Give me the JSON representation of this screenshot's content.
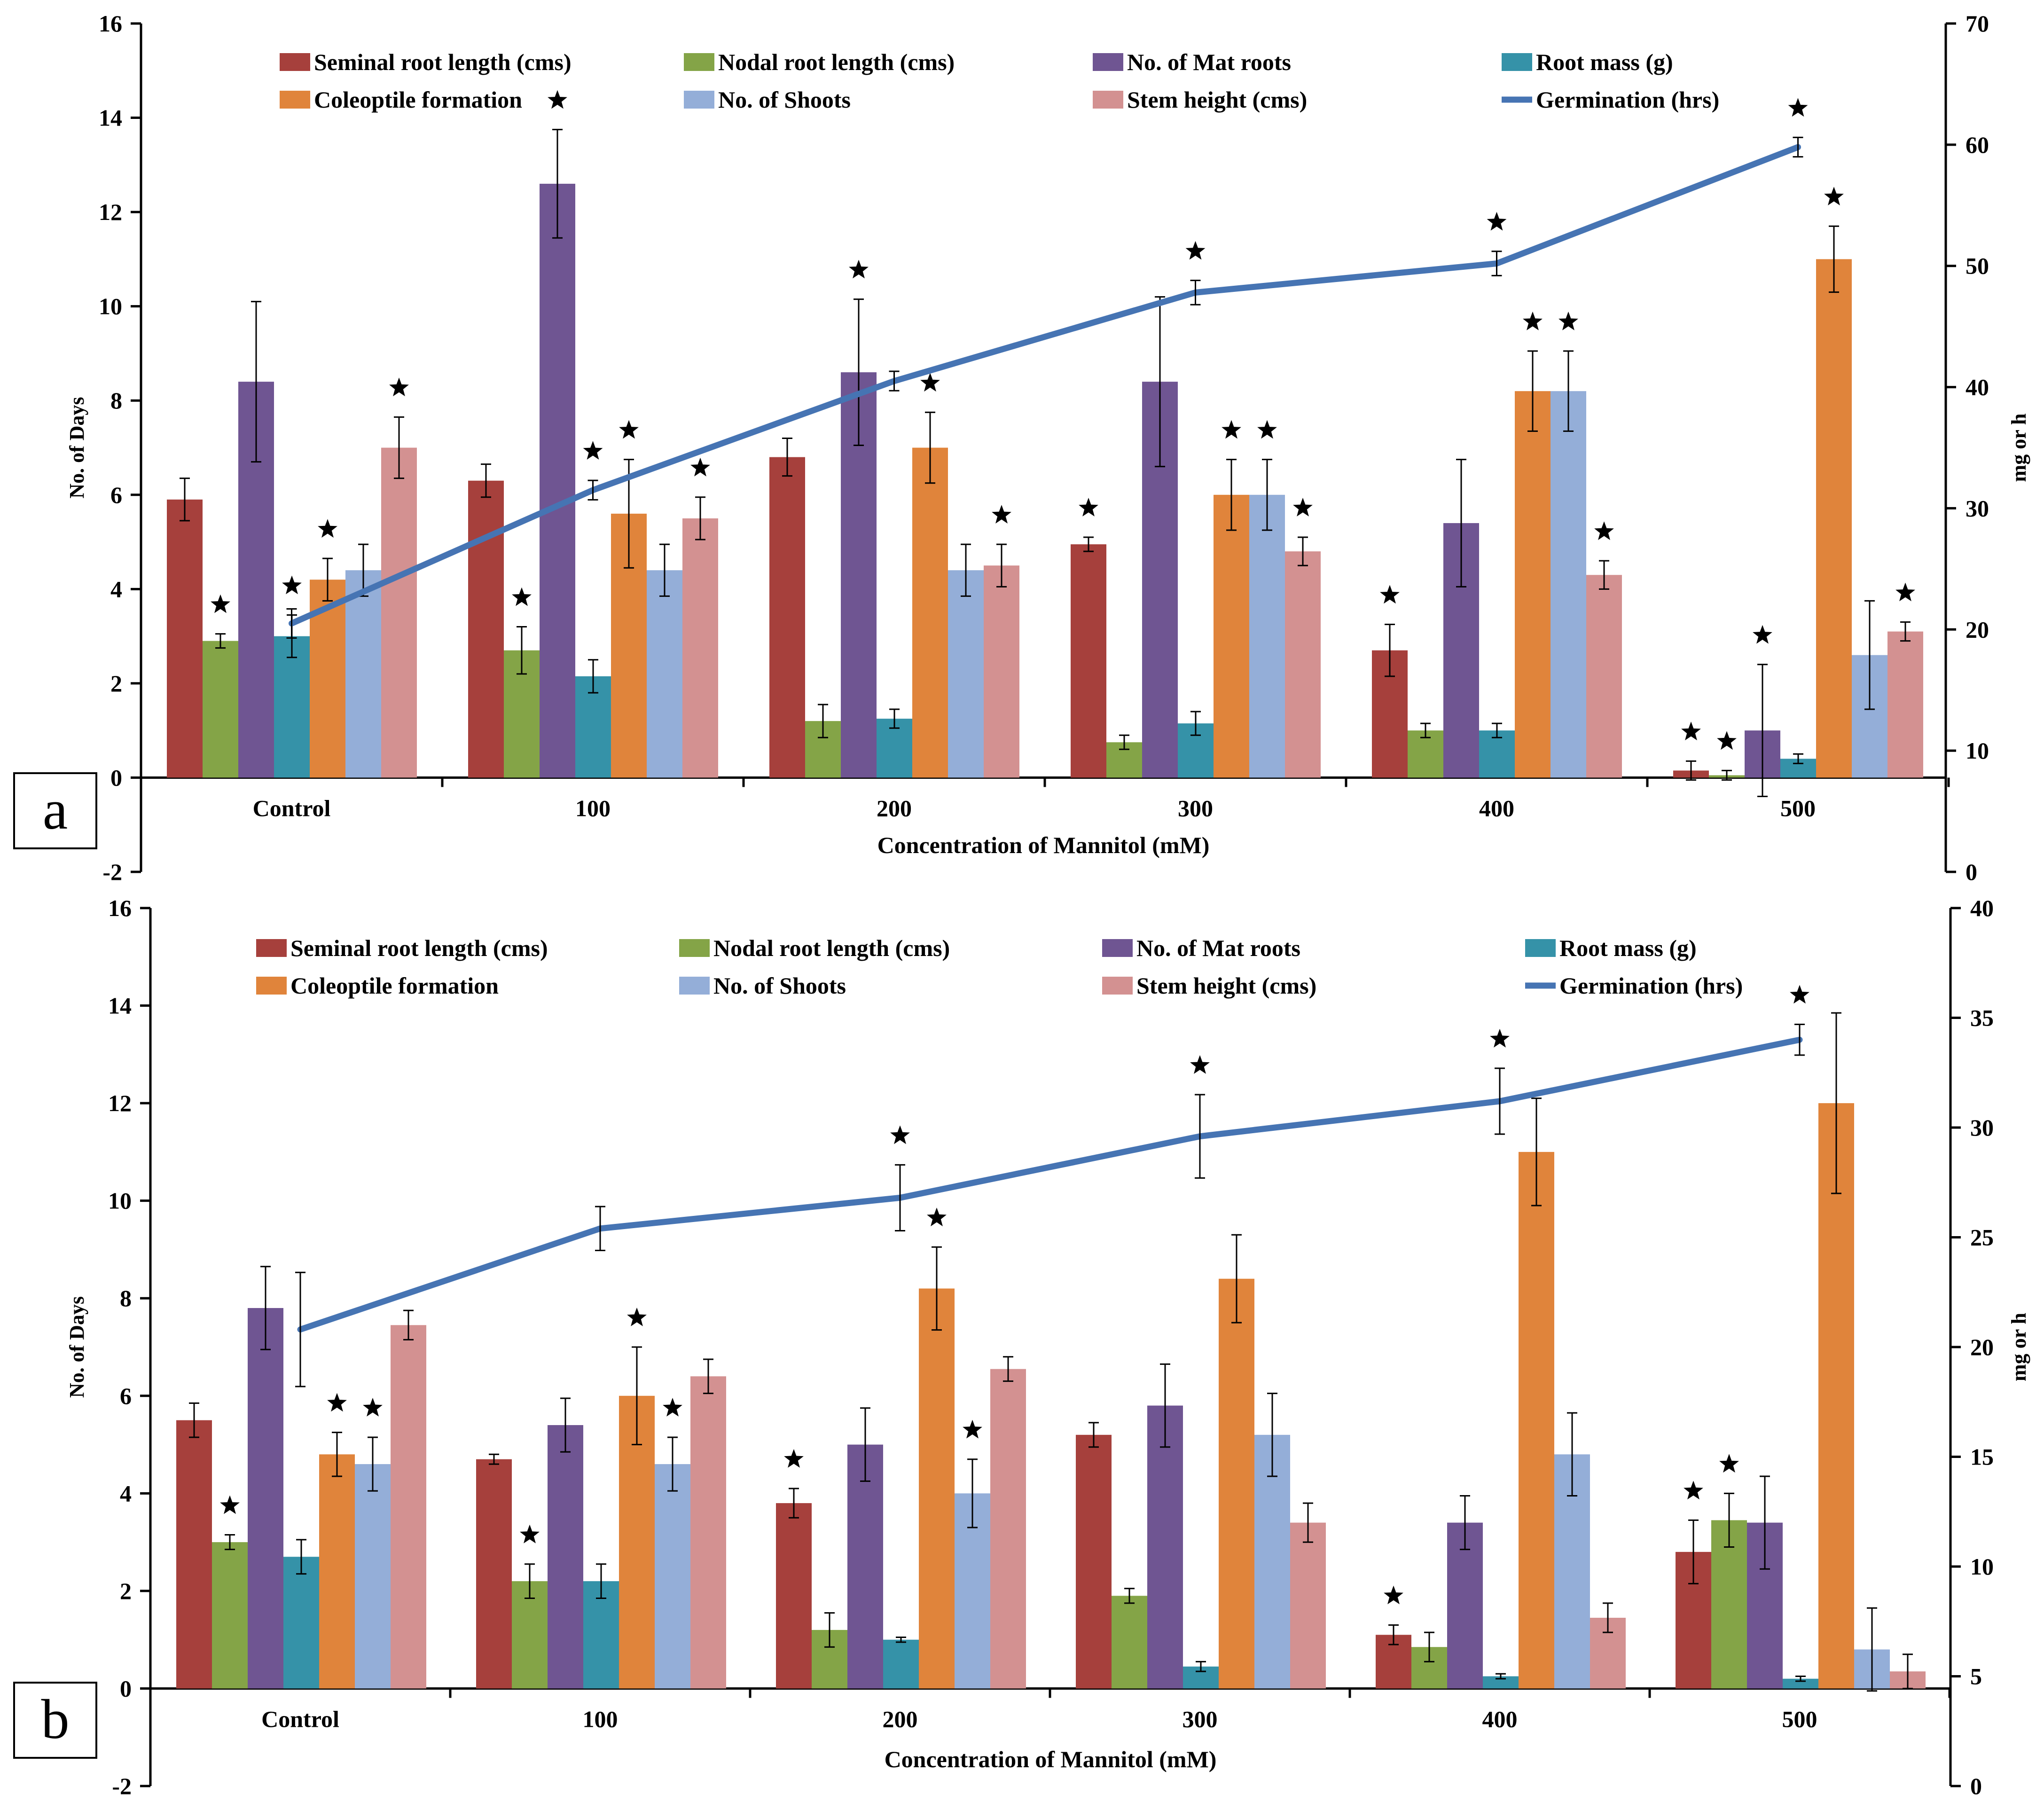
{
  "colors": {
    "seminal": "#A6403C",
    "nodal": "#84A447",
    "mat": "#6F5592",
    "mass": "#3592A8",
    "coleoptile": "#E0843B",
    "shoots": "#94AED8",
    "stem": "#D39191",
    "germ": "#4674B3",
    "axis": "#000000"
  },
  "chart_data": [
    {
      "panel_label": "a",
      "type": "bar",
      "xlabel": "Concentration  of Mannitol  (mM)",
      "ylabel": "No. of Days",
      "ylabel_right": "mg or h",
      "ylim": [
        -2,
        16
      ],
      "y_ticks": [
        "-2",
        "0",
        "2",
        "4",
        "6",
        "8",
        "10",
        "12",
        "14",
        "16"
      ],
      "ylim_right": [
        0,
        70
      ],
      "y_ticks_right": [
        "0",
        "10",
        "20",
        "30",
        "40",
        "50",
        "60",
        "70"
      ],
      "categories": [
        "Control",
        "100",
        "200",
        "300",
        "400",
        "500"
      ],
      "legend_row1": [
        "Seminal root length (cms)",
        "Nodal root length (cms)",
        "No. of Mat roots",
        "Root mass (g)"
      ],
      "legend_row2": [
        "Coleoptile formation",
        "No. of Shoots",
        "Stem height (cms)",
        "Germination (hrs)"
      ],
      "series": [
        {
          "name": "Seminal root length (cms)",
          "key": "seminal",
          "values": [
            5.9,
            6.3,
            6.8,
            4.95,
            2.7,
            0.15
          ],
          "errors": [
            0.45,
            0.35,
            0.4,
            0.15,
            0.55,
            0.2
          ],
          "stars": [
            false,
            false,
            false,
            true,
            true,
            true
          ]
        },
        {
          "name": "Nodal root length (cms)",
          "key": "nodal",
          "values": [
            2.9,
            2.7,
            1.2,
            0.75,
            1.0,
            0.05
          ],
          "errors": [
            0.15,
            0.5,
            0.35,
            0.15,
            0.15,
            0.1
          ],
          "stars": [
            true,
            true,
            false,
            false,
            false,
            true
          ]
        },
        {
          "name": "No. of Mat roots",
          "key": "mat",
          "values": [
            8.4,
            12.6,
            8.6,
            8.4,
            5.4,
            1.0
          ],
          "errors": [
            1.7,
            1.15,
            1.55,
            1.8,
            1.35,
            1.4
          ],
          "stars": [
            false,
            true,
            true,
            false,
            false,
            true
          ]
        },
        {
          "name": "Root mass (g)",
          "key": "mass",
          "values": [
            3.0,
            2.15,
            1.25,
            1.15,
            1.0,
            0.4
          ],
          "errors": [
            0.45,
            0.35,
            0.2,
            0.25,
            0.15,
            0.1
          ],
          "stars": [
            true,
            false,
            false,
            false,
            false,
            false
          ]
        },
        {
          "name": "Coleoptile formation",
          "key": "coleoptile",
          "values": [
            4.2,
            5.6,
            7.0,
            6.0,
            8.2,
            11.0
          ],
          "errors": [
            0.45,
            1.15,
            0.75,
            0.75,
            0.85,
            0.7
          ],
          "stars": [
            true,
            true,
            true,
            true,
            true,
            true
          ]
        },
        {
          "name": "No. of Shoots",
          "key": "shoots",
          "values": [
            4.4,
            4.4,
            4.4,
            6.0,
            8.2,
            2.6
          ],
          "errors": [
            0.55,
            0.55,
            0.55,
            0.75,
            0.85,
            1.15
          ],
          "stars": [
            false,
            false,
            false,
            true,
            true,
            false
          ]
        },
        {
          "name": "Stem height (cms)",
          "key": "stem",
          "values": [
            7.0,
            5.5,
            4.5,
            4.8,
            4.3,
            3.1
          ],
          "errors": [
            0.65,
            0.45,
            0.45,
            0.3,
            0.3,
            0.2
          ],
          "stars": [
            true,
            true,
            true,
            true,
            true,
            true
          ]
        }
      ],
      "line": {
        "name": "Germination (hrs)",
        "key": "germ",
        "values": [
          20.5,
          31.5,
          40.5,
          47.8,
          50.2,
          59.8
        ],
        "errors": [
          1.2,
          0.8,
          0.8,
          1.0,
          1.0,
          0.8
        ],
        "stars": [
          false,
          true,
          false,
          true,
          true,
          true
        ]
      }
    },
    {
      "panel_label": "b",
      "type": "bar",
      "xlabel": "Concentration  of Mannitol  (mM)",
      "ylabel": "No. of Days",
      "ylabel_right": "mg or h",
      "ylim": [
        -2,
        16
      ],
      "y_ticks": [
        "-2",
        "0",
        "2",
        "4",
        "6",
        "8",
        "10",
        "12",
        "14",
        "16"
      ],
      "ylim_right": [
        0,
        40
      ],
      "y_ticks_right": [
        "0",
        "5",
        "10",
        "15",
        "20",
        "25",
        "30",
        "35",
        "40"
      ],
      "categories": [
        "Control",
        "100",
        "200",
        "300",
        "400",
        "500"
      ],
      "legend_row1": [
        "Seminal root length (cms)",
        "Nodal root length (cms)",
        "No. of Mat roots",
        "Root mass (g)"
      ],
      "legend_row2": [
        "Coleoptile formation",
        "No. of Shoots",
        "Stem height (cms)",
        "Germination (hrs)"
      ],
      "series": [
        {
          "name": "Seminal root length (cms)",
          "key": "seminal",
          "values": [
            5.5,
            4.7,
            3.8,
            5.2,
            1.1,
            2.8
          ],
          "errors": [
            0.35,
            0.1,
            0.3,
            0.25,
            0.2,
            0.65
          ],
          "stars": [
            false,
            false,
            true,
            false,
            true,
            true
          ]
        },
        {
          "name": "Nodal root length (cms)",
          "key": "nodal",
          "values": [
            3.0,
            2.2,
            1.2,
            1.9,
            0.85,
            3.45
          ],
          "errors": [
            0.15,
            0.35,
            0.35,
            0.15,
            0.3,
            0.55
          ],
          "stars": [
            true,
            true,
            false,
            false,
            false,
            true
          ]
        },
        {
          "name": "No. of Mat roots",
          "key": "mat",
          "values": [
            7.8,
            5.4,
            5.0,
            5.8,
            3.4,
            3.4
          ],
          "errors": [
            0.85,
            0.55,
            0.75,
            0.85,
            0.55,
            0.95
          ],
          "stars": [
            false,
            false,
            false,
            false,
            false,
            false
          ]
        },
        {
          "name": "Root mass (g)",
          "key": "mass",
          "values": [
            2.7,
            2.2,
            1.0,
            0.45,
            0.25,
            0.2
          ],
          "errors": [
            0.35,
            0.35,
            0.05,
            0.1,
            0.05,
            0.05
          ],
          "stars": [
            false,
            false,
            false,
            false,
            false,
            false
          ]
        },
        {
          "name": "Coleoptile formation",
          "key": "coleoptile",
          "values": [
            4.8,
            6.0,
            8.2,
            8.4,
            11.0,
            12.0
          ],
          "errors": [
            0.45,
            1.0,
            0.85,
            0.9,
            1.1,
            1.85
          ],
          "stars": [
            true,
            true,
            true,
            false,
            false,
            false
          ]
        },
        {
          "name": "No. of Shoots",
          "key": "shoots",
          "values": [
            4.6,
            4.6,
            4.0,
            5.2,
            4.8,
            0.8
          ],
          "errors": [
            0.55,
            0.55,
            0.7,
            0.85,
            0.85,
            0.85
          ],
          "stars": [
            true,
            true,
            true,
            false,
            false,
            false
          ]
        },
        {
          "name": "Stem height (cms)",
          "key": "stem",
          "values": [
            7.45,
            6.4,
            6.55,
            3.4,
            1.45,
            0.35
          ],
          "errors": [
            0.3,
            0.35,
            0.25,
            0.4,
            0.3,
            0.35
          ],
          "stars": [
            false,
            false,
            false,
            false,
            false,
            false
          ]
        }
      ],
      "line": {
        "name": "Germination (hrs)",
        "key": "germ",
        "values": [
          20.8,
          25.4,
          26.8,
          29.6,
          31.2,
          34.0
        ],
        "errors": [
          2.6,
          1.0,
          1.5,
          1.9,
          1.5,
          0.7
        ],
        "stars": [
          false,
          false,
          true,
          true,
          true,
          true
        ]
      }
    }
  ]
}
